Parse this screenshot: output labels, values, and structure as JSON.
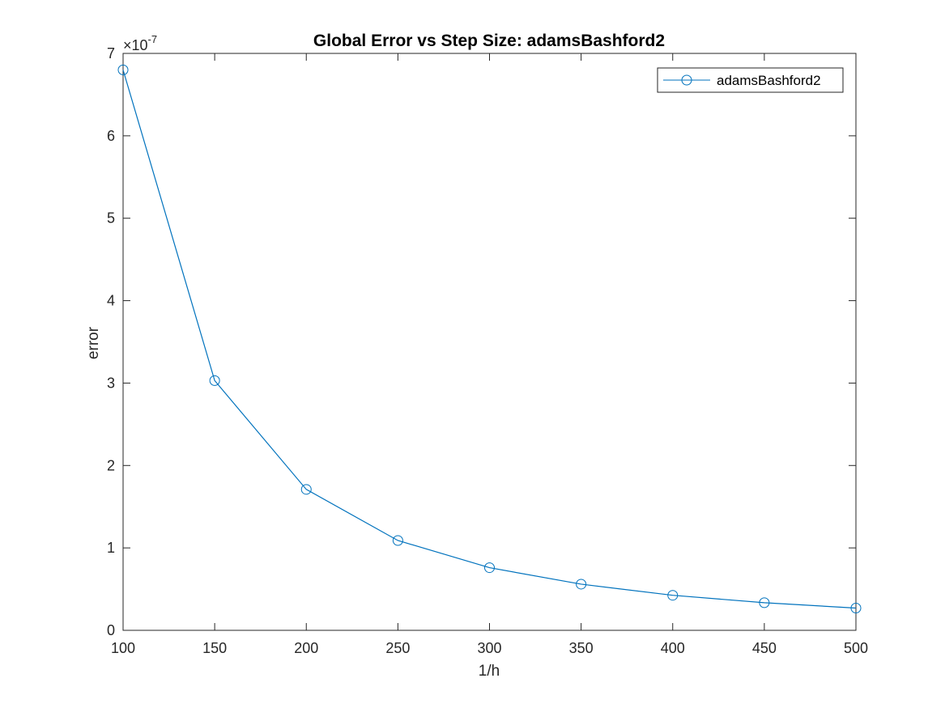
{
  "chart_data": {
    "type": "line",
    "title": "Global Error vs Step Size: adamsBashford2",
    "xlabel": "1/h",
    "ylabel": "error",
    "exponent_base": "×10",
    "exponent_power": "-7",
    "xlim": [
      100,
      500
    ],
    "ylim": [
      0,
      7e-07
    ],
    "xticks": [
      100,
      150,
      200,
      250,
      300,
      350,
      400,
      450,
      500
    ],
    "yticks": [
      0,
      1e-07,
      2e-07,
      3e-07,
      4e-07,
      5e-07,
      6e-07,
      7e-07
    ],
    "xtick_labels": [
      "100",
      "150",
      "200",
      "250",
      "300",
      "350",
      "400",
      "450",
      "500"
    ],
    "ytick_labels": [
      "0",
      "1",
      "2",
      "3",
      "4",
      "5",
      "6",
      "7"
    ],
    "grid": false,
    "legend_position": "top-right",
    "series": [
      {
        "name": "adamsBashford2",
        "color": "#0072BD",
        "marker": "circle",
        "x": [
          100,
          150,
          200,
          250,
          300,
          350,
          400,
          450,
          500
        ],
        "y": [
          6.8e-07,
          3.03e-07,
          1.71e-07,
          1.09e-07,
          7.6e-08,
          5.6e-08,
          4.25e-08,
          3.35e-08,
          2.7e-08
        ]
      }
    ]
  }
}
